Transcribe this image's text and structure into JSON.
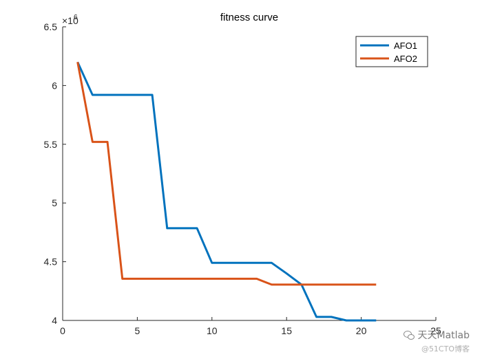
{
  "chart_data": {
    "type": "line",
    "title": "fitness curve",
    "xlabel": "",
    "ylabel": "",
    "xlim": [
      0,
      25
    ],
    "ylim": [
      4000000,
      6500000
    ],
    "xticks": [
      0,
      5,
      10,
      15,
      20,
      25
    ],
    "yticks": [
      4,
      4.5,
      5,
      5.5,
      6,
      6.5
    ],
    "y_exponent_base": "×10",
    "y_exponent_power": "6",
    "y_scale": 1000000,
    "legend_position": "top-right",
    "series": [
      {
        "name": "AFO1",
        "color": "#0072BD",
        "x": [
          1,
          2,
          3,
          4,
          5,
          6,
          7,
          8,
          9,
          10,
          11,
          12,
          13,
          14,
          15,
          16,
          17,
          18,
          19,
          20,
          21
        ],
        "y": [
          6200000,
          5920000,
          5920000,
          5920000,
          5920000,
          5920000,
          4785000,
          4785000,
          4785000,
          4490000,
          4490000,
          4490000,
          4490000,
          4490000,
          4400000,
          4305000,
          4030000,
          4030000,
          4000000,
          4000000,
          4000000
        ]
      },
      {
        "name": "AFO2",
        "color": "#D95319",
        "x": [
          1,
          2,
          3,
          4,
          5,
          6,
          7,
          8,
          9,
          10,
          11,
          12,
          13,
          14,
          15,
          16,
          17,
          18,
          19,
          20,
          21
        ],
        "y": [
          6200000,
          5520000,
          5520000,
          4355000,
          4355000,
          4355000,
          4355000,
          4355000,
          4355000,
          4355000,
          4355000,
          4355000,
          4355000,
          4305000,
          4305000,
          4305000,
          4305000,
          4305000,
          4305000,
          4305000,
          4305000
        ]
      }
    ]
  },
  "watermark": {
    "line1": "天天Matlab",
    "line2": "@51CTO博客"
  }
}
